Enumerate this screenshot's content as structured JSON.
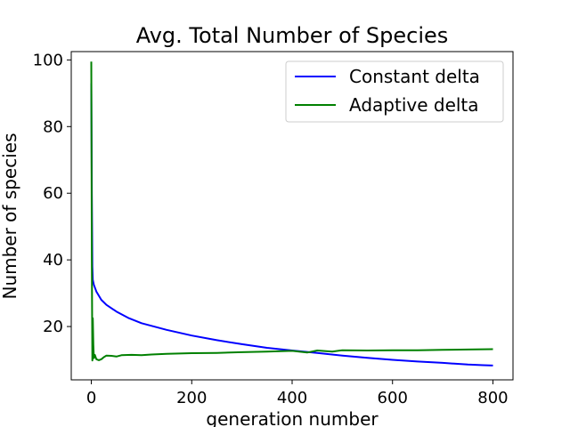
{
  "chart_data": {
    "type": "line",
    "title": "Avg. Total Number of Species",
    "xlabel": "generation number",
    "ylabel": "Number of species",
    "xlim": [
      -40,
      840
    ],
    "ylim": [
      4,
      102.5
    ],
    "xticks": [
      0,
      200,
      400,
      600,
      800
    ],
    "yticks": [
      20,
      40,
      60,
      80,
      100
    ],
    "grid": false,
    "legend_position": "top-right",
    "series": [
      {
        "name": "Constant delta",
        "color": "#0000ff",
        "x": [
          0,
          1,
          2,
          3,
          5,
          10,
          20,
          30,
          50,
          75,
          100,
          150,
          200,
          250,
          300,
          350,
          400,
          450,
          500,
          550,
          600,
          650,
          700,
          750,
          780,
          800
        ],
        "y": [
          93,
          60,
          38,
          34,
          32.5,
          30.5,
          28,
          26.5,
          24.5,
          22.5,
          21,
          19,
          17.3,
          15.9,
          14.7,
          13.6,
          12.8,
          12.1,
          11.3,
          10.6,
          10,
          9.5,
          9.1,
          8.6,
          8.4,
          8.3
        ]
      },
      {
        "name": "Adaptive delta",
        "color": "#008000",
        "x": [
          0,
          1,
          2,
          3,
          4,
          5,
          7,
          10,
          15,
          20,
          25,
          30,
          40,
          50,
          60,
          80,
          100,
          120,
          150,
          175,
          200,
          250,
          300,
          350,
          400,
          430,
          450,
          480,
          500,
          550,
          600,
          650,
          700,
          750,
          800
        ],
        "y": [
          99.5,
          40,
          9.8,
          22.5,
          14.5,
          10.5,
          11.5,
          10.2,
          9.9,
          10.2,
          10.8,
          11.3,
          11.2,
          11.0,
          11.4,
          11.5,
          11.4,
          11.6,
          11.8,
          11.9,
          12.0,
          12.1,
          12.3,
          12.5,
          12.7,
          12.2,
          12.8,
          12.5,
          12.9,
          12.8,
          12.9,
          12.9,
          13.0,
          13.1,
          13.2
        ]
      }
    ]
  }
}
